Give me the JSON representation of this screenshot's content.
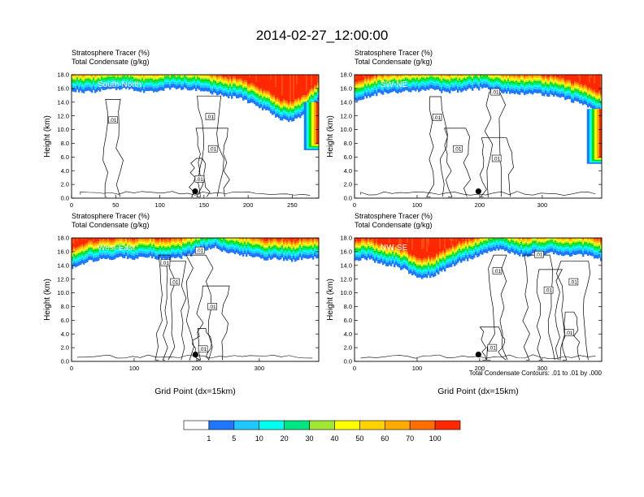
{
  "title": "2014-02-27_12:00:00",
  "colorbar": {
    "labels": [
      "1",
      "5",
      "10",
      "20",
      "30",
      "40",
      "50",
      "60",
      "70",
      "100"
    ],
    "colors": [
      "#ffffff",
      "#1e78ff",
      "#1ec8ff",
      "#00fff0",
      "#00e682",
      "#00e100",
      "#a0e632",
      "#ffff00",
      "#ffd200",
      "#ffaa00",
      "#ff6e00",
      "#ff2800"
    ]
  },
  "note": "Total Condensate Contours: .01 to .01 by .000",
  "contour_label": ".01",
  "chart_data": [
    {
      "type": "heatmap",
      "name": "South-North",
      "header_line1": "Stratosphere Tracer   (%)",
      "header_line2": "Total Condensate   (g/kg)",
      "ylabel": "Height (km)",
      "xlabel": "",
      "xlim": [
        0,
        280
      ],
      "ylim": [
        0,
        18
      ],
      "xticks": [
        "0",
        "50",
        "100",
        "150",
        "200",
        "250"
      ],
      "xtick_values": [
        0,
        50,
        100,
        150,
        200,
        250
      ],
      "yticks": [
        "0.0",
        "2.0",
        "4.0",
        "6.0",
        "8.0",
        "10.0",
        "12.0",
        "14.0",
        "16.0",
        "18.0"
      ],
      "marker_x": 140,
      "marker_y": 1.0,
      "tracer_base_km": [
        15.8,
        15.4,
        15.6,
        15.9,
        16.0,
        15.7,
        15.5,
        15.8,
        16.0,
        15.9,
        15.6,
        15.2,
        14.8,
        14.6,
        13.6,
        12.8,
        11.6,
        11.2,
        12.2,
        14.2
      ],
      "tracer_end_wall": true,
      "contour_label_positions": [
        [
          47,
          11.4
        ],
        [
          157,
          11.9
        ],
        [
          160,
          7.2
        ],
        [
          145,
          2.8
        ]
      ]
    },
    {
      "type": "heatmap",
      "name": "SW-NE",
      "header_line1": "Stratosphere Tracer   (%)",
      "header_line2": "Total Condensate   (g/kg)",
      "ylabel": "Height (km)",
      "xlabel": "",
      "xlim": [
        0,
        395
      ],
      "ylim": [
        0,
        18
      ],
      "xticks": [
        "0",
        "100",
        "200",
        "300"
      ],
      "xtick_values": [
        0,
        100,
        200,
        300
      ],
      "yticks": [
        "0.0",
        "2.0",
        "4.0",
        "6.0",
        "8.0",
        "10.0",
        "12.0",
        "14.0",
        "16.0",
        "18.0"
      ],
      "marker_x": 198,
      "marker_y": 1.0,
      "tracer_base_km": [
        14.2,
        14.8,
        15.2,
        15.4,
        15.6,
        15.6,
        15.8,
        15.4,
        15.6,
        15.9,
        16.0,
        15.6,
        15.4,
        15.2,
        15.2,
        15.0,
        14.6,
        14.0,
        13.4,
        12.4
      ],
      "tracer_end_wall": true,
      "contour_label_positions": [
        [
          132,
          11.8
        ],
        [
          165,
          7.2
        ],
        [
          227,
          5.8
        ],
        [
          225,
          15.5
        ]
      ]
    },
    {
      "type": "heatmap",
      "name": "West-East",
      "header_line1": "Stratosphere Tracer   (%)",
      "header_line2": "Total Condensate   (g/kg)",
      "ylabel": "Height (km)",
      "xlabel": "Grid Point (dx=15km)",
      "xlim": [
        0,
        395
      ],
      "ylim": [
        0,
        18
      ],
      "xticks": [
        "0",
        "100",
        "200",
        "300"
      ],
      "xtick_values": [
        0,
        100,
        200,
        300
      ],
      "yticks": [
        "0.0",
        "2.0",
        "4.0",
        "6.0",
        "8.0",
        "10.0",
        "12.0",
        "14.0",
        "16.0",
        "18.0"
      ],
      "marker_x": 198,
      "marker_y": 1.0,
      "tracer_base_km": [
        13.6,
        14.4,
        14.8,
        15.0,
        15.2,
        15.0,
        15.2,
        14.8,
        15.0,
        15.4,
        16.2,
        16.6,
        15.8,
        15.6,
        15.2,
        14.8,
        15.0,
        14.6,
        15.2,
        15.0
      ],
      "tracer_end_wall": false,
      "contour_label_positions": [
        [
          150,
          14.4
        ],
        [
          165,
          11.6
        ],
        [
          225,
          8.0
        ],
        [
          210,
          1.8
        ],
        [
          205,
          16.2
        ]
      ]
    },
    {
      "type": "heatmap",
      "name": "NW-SE",
      "header_line1": "Stratosphere Tracer   (%)",
      "header_line2": "Total Condensate   (g/kg)",
      "ylabel": "Height (km)",
      "xlabel": "Grid Point (dx=15km)",
      "xlim": [
        0,
        395
      ],
      "ylim": [
        0,
        18
      ],
      "xticks": [
        "0",
        "100",
        "200",
        "300"
      ],
      "xtick_values": [
        0,
        100,
        200,
        300
      ],
      "yticks": [
        "0.0",
        "2.0",
        "4.0",
        "6.0",
        "8.0",
        "10.0",
        "12.0",
        "14.0",
        "16.0",
        "18.0"
      ],
      "marker_x": 198,
      "marker_y": 1.0,
      "tracer_base_km": [
        14.8,
        15.0,
        14.2,
        14.0,
        13.2,
        12.2,
        12.4,
        13.4,
        14.4,
        15.0,
        15.8,
        16.4,
        15.8,
        15.4,
        15.6,
        15.8,
        15.4,
        15.6,
        15.4,
        14.8
      ],
      "tracer_end_wall": false,
      "contour_label_positions": [
        [
          228,
          13.2
        ],
        [
          310,
          10.4
        ],
        [
          350,
          11.6
        ],
        [
          343,
          4.2
        ],
        [
          220,
          2.0
        ],
        [
          295,
          15.6
        ]
      ]
    }
  ]
}
